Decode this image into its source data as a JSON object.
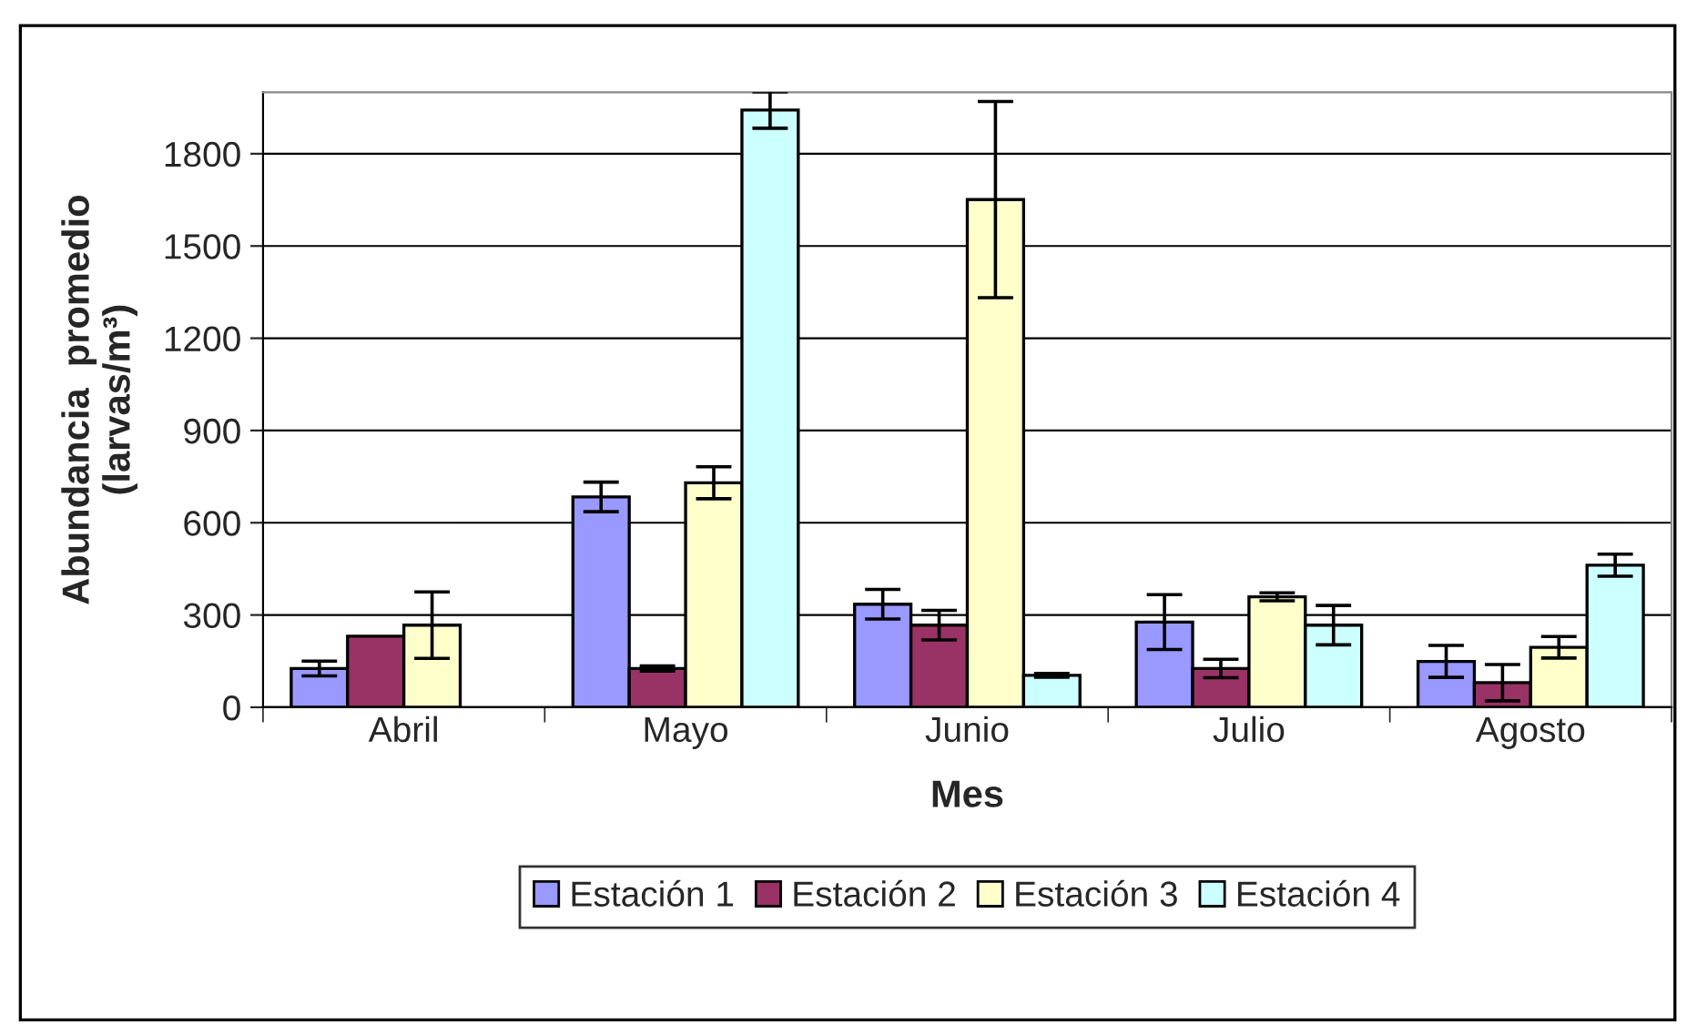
{
  "chart_data": {
    "type": "bar",
    "xlabel": "Mes",
    "ylabel": "Abundancia  promedio\n(larvas/m³)",
    "categories": [
      "Abril",
      "Mayo",
      "Junio",
      "Julio",
      "Agosto"
    ],
    "series": [
      {
        "name": "Estación 1",
        "color": "#9999ff",
        "values": [
          126,
          684,
          335,
          277,
          149
        ],
        "errors": [
          24,
          48,
          48,
          89,
          52
        ]
      },
      {
        "name": "Estación 2",
        "color": "#993366",
        "values": [
          231,
          126,
          267,
          126,
          80
        ],
        "errors": [
          null,
          8,
          48,
          30,
          59
        ]
      },
      {
        "name": "Estación 3",
        "color": "#ffffcc",
        "values": [
          267,
          730,
          1651,
          359,
          195
        ],
        "errors": [
          108,
          52,
          319,
          13,
          35
        ]
      },
      {
        "name": "Estación 4",
        "color": "#ccffff",
        "values": [
          null,
          1942,
          104,
          267,
          462
        ],
        "errors": [
          null,
          59,
          6,
          64,
          36
        ]
      }
    ],
    "ylim": [
      0,
      2000
    ],
    "yticks": [
      0,
      300,
      600,
      900,
      1200,
      1500,
      1800
    ],
    "grid": "y",
    "legend": "bottom"
  }
}
